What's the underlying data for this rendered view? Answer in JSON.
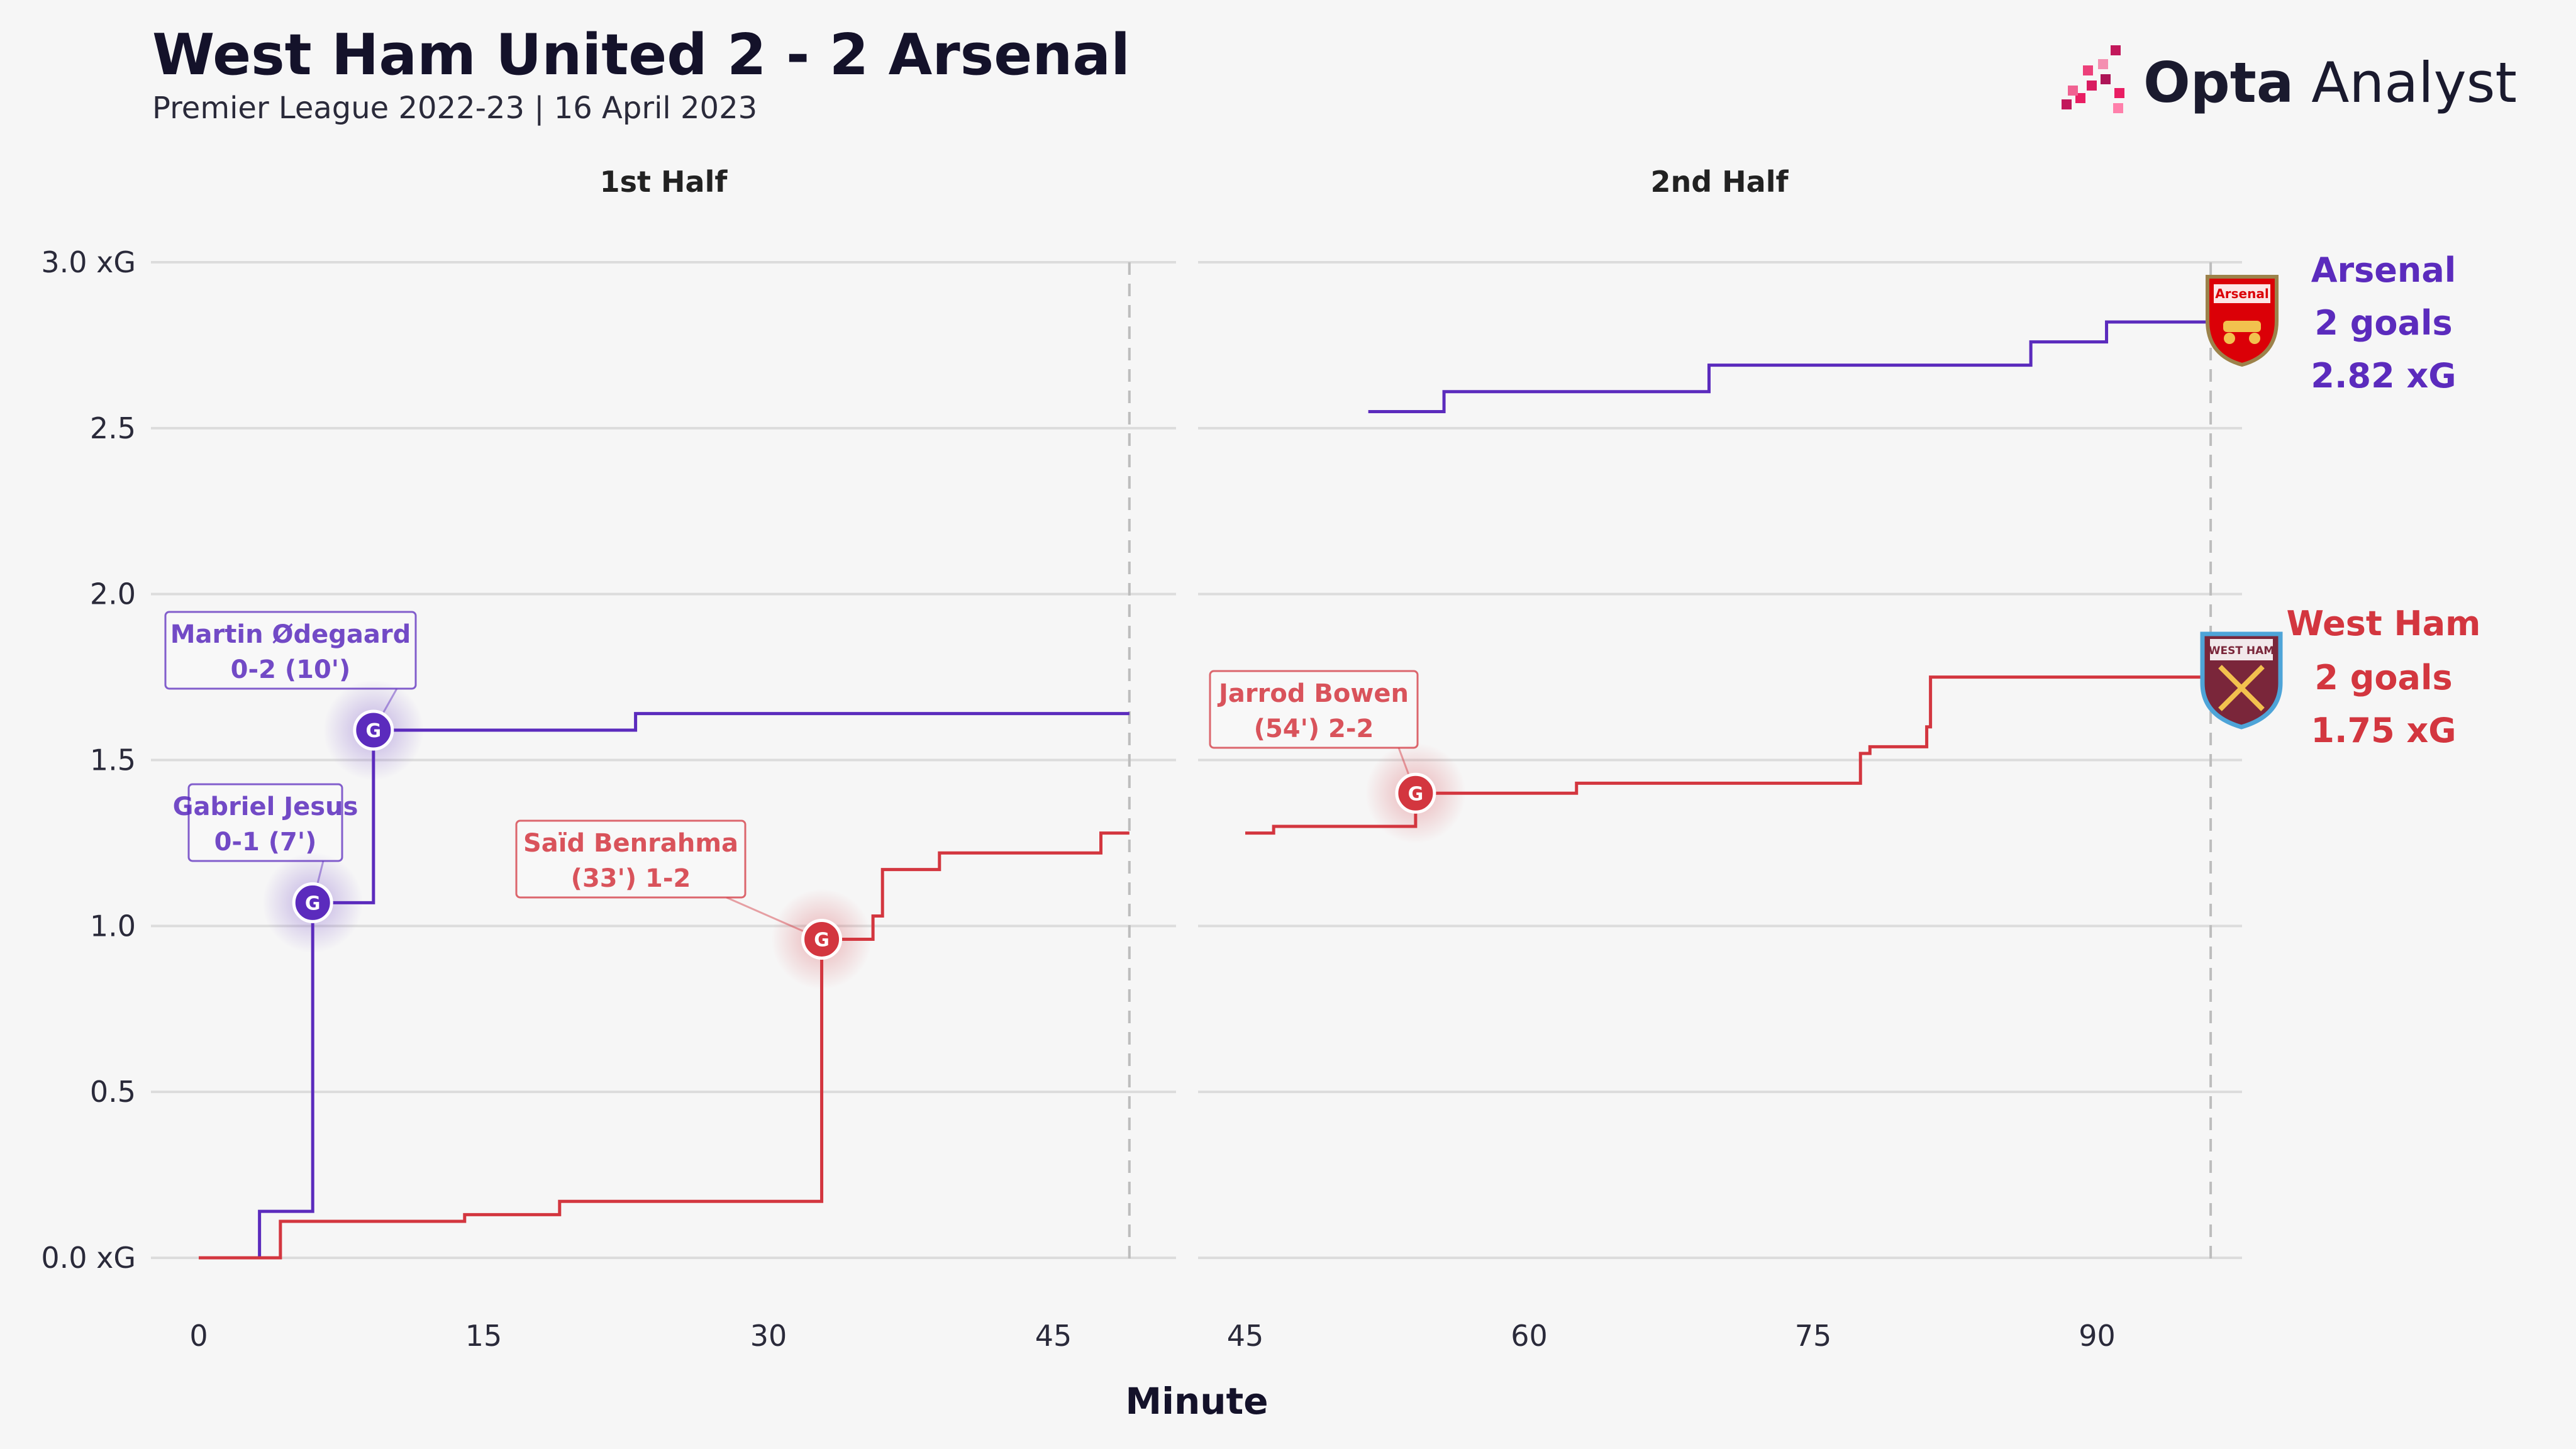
{
  "header": {
    "title": "West Ham United 2 - 2 Arsenal",
    "subtitle": "Premier League 2022-23 | 16 April 2023",
    "brand_bold": "Opta",
    "brand_light": " Analyst"
  },
  "colors": {
    "arsenal": "#5b2bbd",
    "westham": "#d3363f",
    "grid": "#dcdcdc",
    "background": "#f6f6f6"
  },
  "chart_data": {
    "type": "line",
    "step": true,
    "panels": [
      {
        "title": "1st Half",
        "xlim": [
          0,
          49
        ],
        "xticks": [
          0,
          15,
          30,
          45
        ],
        "end_minute": 49
      },
      {
        "title": "2nd Half",
        "xlim": [
          45,
          96
        ],
        "xticks": [
          45,
          60,
          75,
          90
        ],
        "end_minute": 96
      }
    ],
    "ylim": [
      0,
      3.0
    ],
    "yticks": [
      "0.0 xG",
      "0.5",
      "1.0",
      "1.5",
      "2.0",
      "2.5",
      "3.0 xG"
    ],
    "ytick_values": [
      0,
      0.5,
      1.0,
      1.5,
      2.0,
      2.5,
      3.0
    ],
    "xlabel": "Minute",
    "series": [
      {
        "name": "Arsenal",
        "color": "#5b2bbd",
        "first_half": [
          [
            0,
            0
          ],
          [
            3.2,
            0.14
          ],
          [
            6,
            1.07
          ],
          [
            9.2,
            1.59
          ],
          [
            23,
            1.64
          ],
          [
            49,
            1.64
          ]
        ],
        "second_half": [
          [
            51.5,
            2.55
          ],
          [
            55.5,
            2.61
          ],
          [
            69.5,
            2.69
          ],
          [
            86.5,
            2.76
          ],
          [
            90.5,
            2.82
          ],
          [
            96,
            2.82
          ]
        ],
        "goals": [
          {
            "minute": 6,
            "xg": 1.07,
            "label_line1": "Gabriel Jesus",
            "label_line2": "0-1 (7')",
            "half": 1
          },
          {
            "minute": 9.2,
            "xg": 1.59,
            "label_line1": "Martin Ødegaard",
            "label_line2": "0-2 (10')",
            "half": 1
          }
        ]
      },
      {
        "name": "West Ham",
        "color": "#d3363f",
        "first_half": [
          [
            0,
            0
          ],
          [
            4.3,
            0.11
          ],
          [
            14,
            0.13
          ],
          [
            19,
            0.17
          ],
          [
            32.8,
            0.96
          ],
          [
            35.5,
            1.03
          ],
          [
            36,
            1.17
          ],
          [
            39,
            1.22
          ],
          [
            47.5,
            1.28
          ],
          [
            49,
            1.28
          ]
        ],
        "second_half": [
          [
            45,
            1.28
          ],
          [
            46.5,
            1.3
          ],
          [
            54,
            1.4
          ],
          [
            62.5,
            1.43
          ],
          [
            77.5,
            1.52
          ],
          [
            78,
            1.54
          ],
          [
            81,
            1.6
          ],
          [
            81.2,
            1.75
          ],
          [
            96,
            1.75
          ]
        ],
        "goals": [
          {
            "minute": 32.8,
            "xg": 0.96,
            "label_line1": "Saïd Benrahma",
            "label_line2": "(33') 1-2",
            "half": 1
          },
          {
            "minute": 54,
            "xg": 1.4,
            "label_line1": "Jarrod Bowen",
            "label_line2": "(54') 2-2",
            "half": 2
          }
        ]
      }
    ],
    "goal_marker": "G"
  },
  "summary": {
    "arsenal": {
      "team": "Arsenal",
      "goals": "2 goals",
      "xg": "2.82 xG",
      "crest_text": "Arsenal"
    },
    "westham": {
      "team": "West Ham",
      "goals": "2 goals",
      "xg": "1.75 xG",
      "crest_text": "WEST HAM"
    }
  }
}
